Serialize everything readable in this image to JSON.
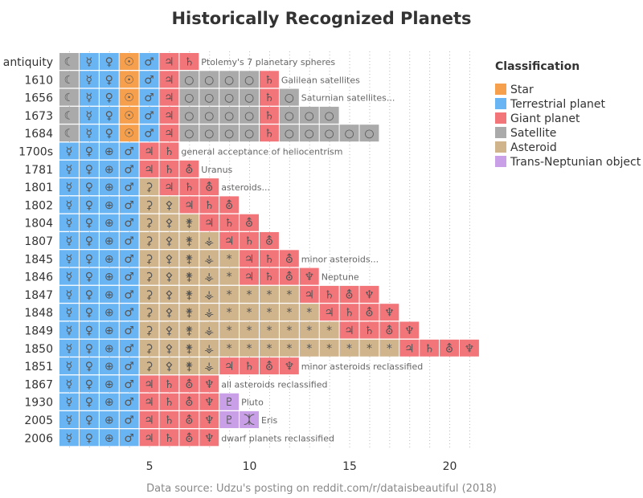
{
  "chart_data": {
    "type": "heatmap",
    "title": "Historically Recognized Planets",
    "source": "Data source: Udzu's posting on reddit.com/r/dataisbeautiful (2018)",
    "xticks": [
      5,
      10,
      15,
      20
    ],
    "xlim": [
      0.5,
      21.5
    ],
    "grid": "vertical dotted",
    "legend": {
      "title": "Classification",
      "placement": "right",
      "entries": [
        {
          "key": "star",
          "label": "Star",
          "color": "#f6a04d"
        },
        {
          "key": "terrestrial",
          "label": "Terrestrial planet",
          "color": "#69b4f3"
        },
        {
          "key": "giant",
          "label": "Giant planet",
          "color": "#f2757a"
        },
        {
          "key": "satellite",
          "label": "Satellite",
          "color": "#aaaaaa"
        },
        {
          "key": "asteroid",
          "label": "Asteroid",
          "color": "#d0b48c"
        },
        {
          "key": "tno",
          "label": "Trans-Neptunian object",
          "color": "#c9a0e8"
        }
      ]
    },
    "rows": [
      {
        "label": "antiquity",
        "cells": [
          "sat:☾",
          "ter:☿",
          "ter:♀",
          "sta:☉",
          "ter:♂",
          "gia:♃",
          "gia:♄"
        ],
        "note": "Ptolemy's 7 planetary spheres"
      },
      {
        "label": "1610",
        "cells": [
          "sat:☾",
          "ter:☿",
          "ter:♀",
          "sta:☉",
          "ter:♂",
          "gia:♃",
          "sat:○",
          "sat:○",
          "sat:○",
          "sat:○",
          "gia:♄"
        ],
        "note": "Galilean satellites"
      },
      {
        "label": "1656",
        "cells": [
          "sat:☾",
          "ter:☿",
          "ter:♀",
          "sta:☉",
          "ter:♂",
          "gia:♃",
          "sat:○",
          "sat:○",
          "sat:○",
          "sat:○",
          "gia:♄",
          "sat:○"
        ],
        "note": "Saturnian satellites..."
      },
      {
        "label": "1673",
        "cells": [
          "sat:☾",
          "ter:☿",
          "ter:♀",
          "sta:☉",
          "ter:♂",
          "gia:♃",
          "sat:○",
          "sat:○",
          "sat:○",
          "sat:○",
          "gia:♄",
          "sat:○",
          "sat:○",
          "sat:○"
        ],
        "note": ""
      },
      {
        "label": "1684",
        "cells": [
          "sat:☾",
          "ter:☿",
          "ter:♀",
          "sta:☉",
          "ter:♂",
          "gia:♃",
          "sat:○",
          "sat:○",
          "sat:○",
          "sat:○",
          "gia:♄",
          "sat:○",
          "sat:○",
          "sat:○",
          "sat:○",
          "sat:○"
        ],
        "note": ""
      },
      {
        "label": "1700s",
        "cells": [
          "ter:☿",
          "ter:♀",
          "ter:⊕",
          "ter:♂",
          "gia:♃",
          "gia:♄"
        ],
        "note": "general acceptance of heliocentrism"
      },
      {
        "label": "1781",
        "cells": [
          "ter:☿",
          "ter:♀",
          "ter:⊕",
          "ter:♂",
          "gia:♃",
          "gia:♄",
          "gia:⛢"
        ],
        "note": "Uranus"
      },
      {
        "label": "1801",
        "cells": [
          "ter:☿",
          "ter:♀",
          "ter:⊕",
          "ter:♂",
          "ast:⚳",
          "gia:♃",
          "gia:♄",
          "gia:⛢"
        ],
        "note": "asteroids..."
      },
      {
        "label": "1802",
        "cells": [
          "ter:☿",
          "ter:♀",
          "ter:⊕",
          "ter:♂",
          "ast:⚳",
          "ast:⚴",
          "gia:♃",
          "gia:♄",
          "gia:⛢"
        ],
        "note": ""
      },
      {
        "label": "1804",
        "cells": [
          "ter:☿",
          "ter:♀",
          "ter:⊕",
          "ter:♂",
          "ast:⚳",
          "ast:⚴",
          "ast:⚵",
          "gia:♃",
          "gia:♄",
          "gia:⛢"
        ],
        "note": ""
      },
      {
        "label": "1807",
        "cells": [
          "ter:☿",
          "ter:♀",
          "ter:⊕",
          "ter:♂",
          "ast:⚳",
          "ast:⚴",
          "ast:⚵",
          "ast:⚶",
          "gia:♃",
          "gia:♄",
          "gia:⛢"
        ],
        "note": ""
      },
      {
        "label": "1845",
        "cells": [
          "ter:☿",
          "ter:♀",
          "ter:⊕",
          "ter:♂",
          "ast:⚳",
          "ast:⚴",
          "ast:⚵",
          "ast:⚶",
          "ast:*",
          "gia:♃",
          "gia:♄",
          "gia:⛢"
        ],
        "note": "minor asteroids..."
      },
      {
        "label": "1846",
        "cells": [
          "ter:☿",
          "ter:♀",
          "ter:⊕",
          "ter:♂",
          "ast:⚳",
          "ast:⚴",
          "ast:⚵",
          "ast:⚶",
          "ast:*",
          "gia:♃",
          "gia:♄",
          "gia:⛢",
          "gia:♆"
        ],
        "note": "Neptune"
      },
      {
        "label": "1847",
        "cells": [
          "ter:☿",
          "ter:♀",
          "ter:⊕",
          "ter:♂",
          "ast:⚳",
          "ast:⚴",
          "ast:⚵",
          "ast:⚶",
          "ast:*",
          "ast:*",
          "ast:*",
          "ast:*",
          "gia:♃",
          "gia:♄",
          "gia:⛢",
          "gia:♆"
        ],
        "note": ""
      },
      {
        "label": "1848",
        "cells": [
          "ter:☿",
          "ter:♀",
          "ter:⊕",
          "ter:♂",
          "ast:⚳",
          "ast:⚴",
          "ast:⚵",
          "ast:⚶",
          "ast:*",
          "ast:*",
          "ast:*",
          "ast:*",
          "ast:*",
          "gia:♃",
          "gia:♄",
          "gia:⛢",
          "gia:♆"
        ],
        "note": ""
      },
      {
        "label": "1849",
        "cells": [
          "ter:☿",
          "ter:♀",
          "ter:⊕",
          "ter:♂",
          "ast:⚳",
          "ast:⚴",
          "ast:⚵",
          "ast:⚶",
          "ast:*",
          "ast:*",
          "ast:*",
          "ast:*",
          "ast:*",
          "ast:*",
          "gia:♃",
          "gia:♄",
          "gia:⛢",
          "gia:♆"
        ],
        "note": ""
      },
      {
        "label": "1850",
        "cells": [
          "ter:☿",
          "ter:♀",
          "ter:⊕",
          "ter:♂",
          "ast:⚳",
          "ast:⚴",
          "ast:⚵",
          "ast:⚶",
          "ast:*",
          "ast:*",
          "ast:*",
          "ast:*",
          "ast:*",
          "ast:*",
          "ast:*",
          "ast:*",
          "ast:*",
          "gia:♃",
          "gia:♄",
          "gia:⛢",
          "gia:♆"
        ],
        "note": ""
      },
      {
        "label": "1851",
        "cells": [
          "ter:☿",
          "ter:♀",
          "ter:⊕",
          "ter:♂",
          "ast:⚳",
          "ast:⚴",
          "ast:⚵",
          "ast:⚶",
          "gia:♃",
          "gia:♄",
          "gia:⛢",
          "gia:♆"
        ],
        "note": "minor asteroids reclassified"
      },
      {
        "label": "1867",
        "cells": [
          "ter:☿",
          "ter:♀",
          "ter:⊕",
          "ter:♂",
          "gia:♃",
          "gia:♄",
          "gia:⛢",
          "gia:♆"
        ],
        "note": "all asteroids reclassified"
      },
      {
        "label": "1930",
        "cells": [
          "ter:☿",
          "ter:♀",
          "ter:⊕",
          "ter:♂",
          "gia:♃",
          "gia:♄",
          "gia:⛢",
          "gia:♆",
          "tno:♇"
        ],
        "note": "Pluto"
      },
      {
        "label": "2005",
        "cells": [
          "ter:☿",
          "ter:♀",
          "ter:⊕",
          "ter:♂",
          "gia:♃",
          "gia:♄",
          "gia:⛢",
          "gia:♆",
          "tno:♇",
          "tno:⯰"
        ],
        "note": "Eris"
      },
      {
        "label": "2006",
        "cells": [
          "ter:☿",
          "ter:♀",
          "ter:⊕",
          "ter:♂",
          "gia:♃",
          "gia:♄",
          "gia:⛢",
          "gia:♆"
        ],
        "note": "dwarf planets reclassified"
      }
    ]
  }
}
